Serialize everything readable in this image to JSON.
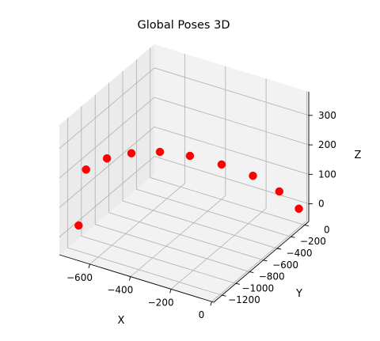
{
  "chart_data": {
    "type": "scatter",
    "projection": "3d",
    "title": "Global Poses 3D",
    "xlabel": "X",
    "ylabel": "Y",
    "zlabel": "Z",
    "xlim": [
      -750,
      10
    ],
    "ylim": [
      -1320,
      60
    ],
    "zlim": [
      -60,
      380
    ],
    "x_ticks": [
      -600,
      -400,
      -200,
      0
    ],
    "x_tick_labels": [
      "−600",
      "−400",
      "−200",
      "0"
    ],
    "y_ticks": [
      -1200,
      -1000,
      -800,
      -600,
      -400,
      -200,
      0
    ],
    "y_tick_labels": [
      "−1200",
      "−1000",
      "−800",
      "−600",
      "−400",
      "−200",
      "0"
    ],
    "z_ticks": [
      0,
      100,
      200,
      300
    ],
    "z_tick_labels": [
      "0",
      "100",
      "200",
      "300"
    ],
    "grid": true,
    "marker_color": "#ff0000",
    "points": [
      {
        "x": -5,
        "y": -40,
        "z": 0
      },
      {
        "x": -30,
        "y": -250,
        "z": 95
      },
      {
        "x": -85,
        "y": -470,
        "z": 180
      },
      {
        "x": -165,
        "y": -690,
        "z": 245
      },
      {
        "x": -260,
        "y": -870,
        "z": 290
      },
      {
        "x": -360,
        "y": -1010,
        "z": 310
      },
      {
        "x": -470,
        "y": -1100,
        "z": 300
      },
      {
        "x": -580,
        "y": -1130,
        "z": 265
      },
      {
        "x": -690,
        "y": -1110,
        "z": 200
      },
      {
        "x": -730,
        "y": -1100,
        "z": 0
      }
    ]
  }
}
